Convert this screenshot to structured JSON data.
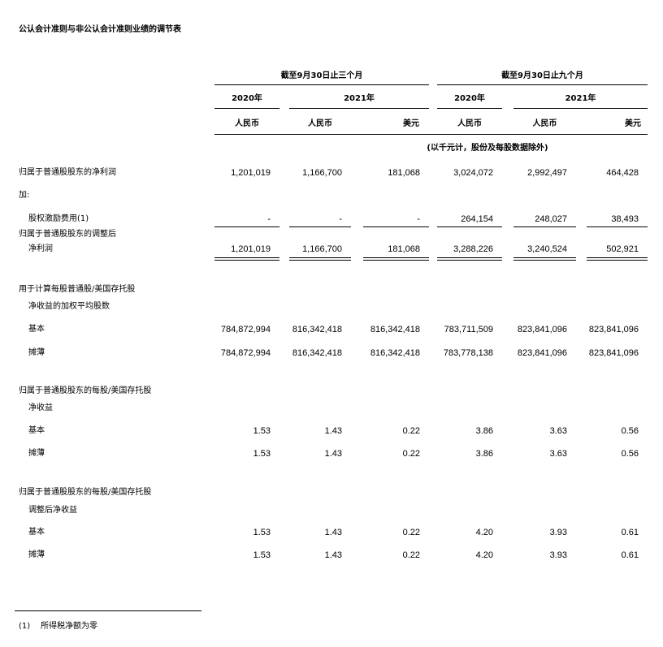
{
  "title": "公认会计准则与非公认会计准则业绩的调节表",
  "header": {
    "period_three_months": "截至9月30日止三个月",
    "period_nine_months": "截至9月30日止九个月",
    "years": [
      "2020年",
      "2021年",
      "2020年",
      "2021年"
    ],
    "currencies": [
      "人民币",
      "人民币",
      "美元",
      "人民币",
      "人民币",
      "美元"
    ],
    "unit_note": "(以千元计，股份及每股数据除外)"
  },
  "rows": [
    {
      "label": "归属于普通股股东的净利润",
      "values": [
        "1,201,019",
        "1,166,700",
        "181,068",
        "3,024,072",
        "2,992,497",
        "464,428"
      ]
    },
    {
      "label": "加:",
      "values": []
    },
    {
      "label": "股权激励费用(1)",
      "values": [
        "-",
        "-",
        "-",
        "264,154",
        "248,027",
        "38,493"
      ]
    },
    {
      "label": "归属于普通股股东的调整后",
      "values": []
    },
    {
      "label": "净利润",
      "values": [
        "1,201,019",
        "1,166,700",
        "181,068",
        "3,288,226",
        "3,240,524",
        "502,921"
      ]
    },
    {
      "label": "用于计算每股普通股/美国存托股",
      "values": []
    },
    {
      "label": "净收益的加权平均股数",
      "values": []
    },
    {
      "label": "基本",
      "values": [
        "784,872,994",
        "816,342,418",
        "816,342,418",
        "783,711,509",
        "823,841,096",
        "823,841,096"
      ]
    },
    {
      "label": "摊薄",
      "values": [
        "784,872,994",
        "816,342,418",
        "816,342,418",
        "783,778,138",
        "823,841,096",
        "823,841,096"
      ]
    },
    {
      "label": "归属于普通股股东的每股/美国存托股",
      "values": []
    },
    {
      "label": "净收益",
      "values": []
    },
    {
      "label": "基本",
      "values": [
        "1.53",
        "1.43",
        "0.22",
        "3.86",
        "3.63",
        "0.56"
      ]
    },
    {
      "label": "摊薄",
      "values": [
        "1.53",
        "1.43",
        "0.22",
        "3.86",
        "3.63",
        "0.56"
      ]
    },
    {
      "label": "归属于普通股股东的每股/美国存托股",
      "values": []
    },
    {
      "label": "调整后净收益",
      "values": []
    },
    {
      "label": "基本",
      "values": [
        "1.53",
        "1.43",
        "0.22",
        "4.20",
        "3.93",
        "0.61"
      ]
    },
    {
      "label": "摊薄",
      "values": [
        "1.53",
        "1.43",
        "0.22",
        "4.20",
        "3.93",
        "0.61"
      ]
    }
  ],
  "footnote": {
    "marker": "(1)",
    "text": "所得税净额为零"
  }
}
